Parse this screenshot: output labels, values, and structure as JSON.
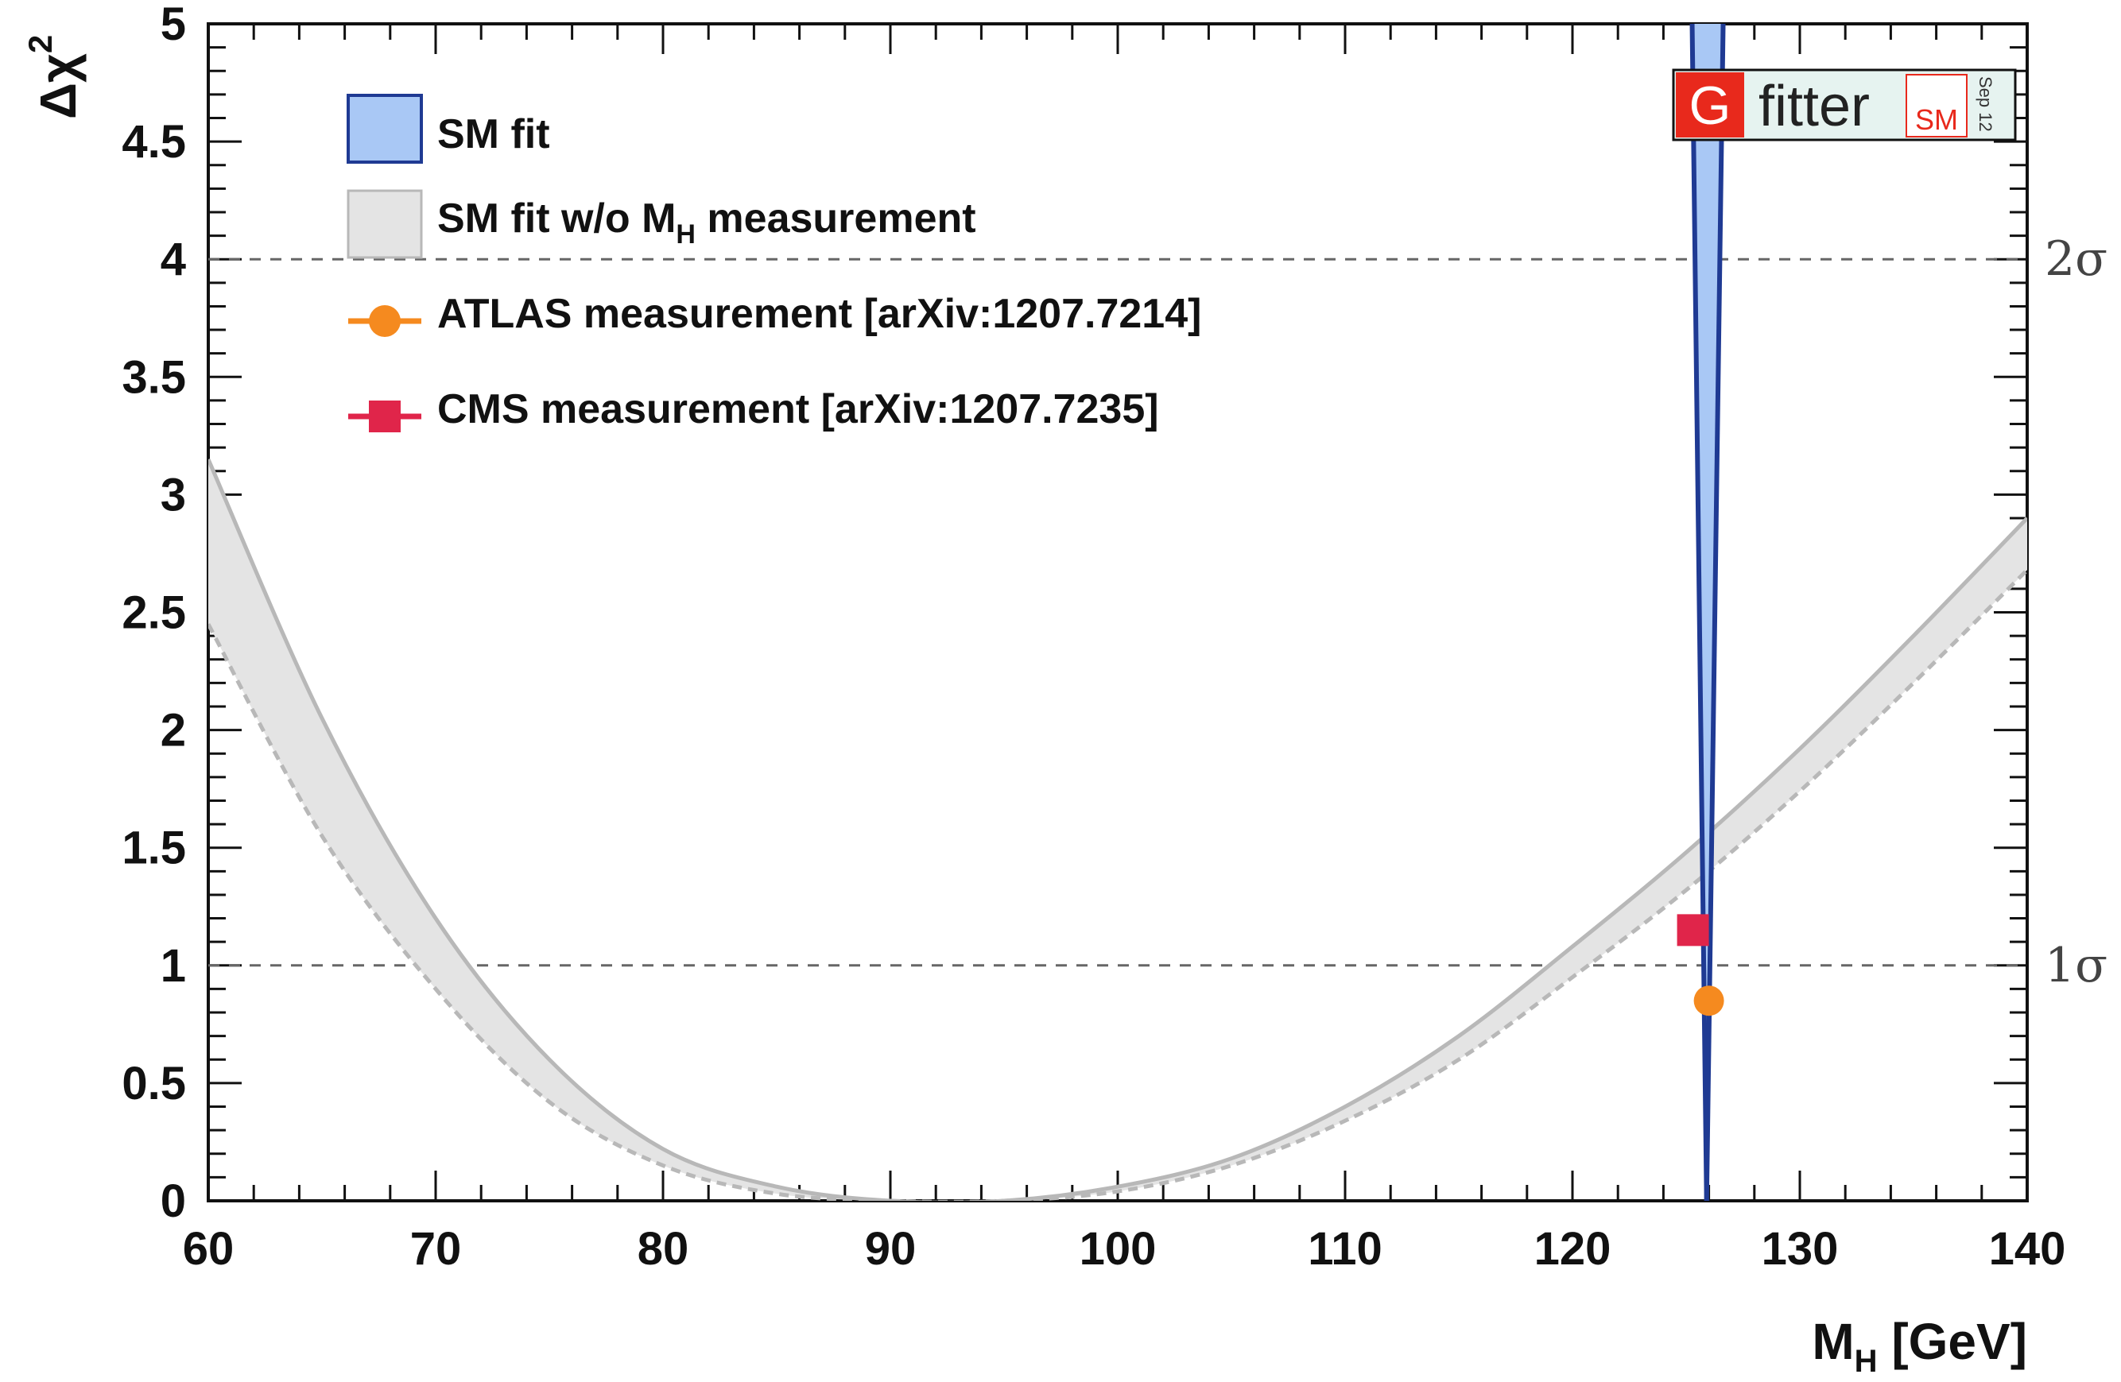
{
  "chart_data": {
    "type": "line",
    "xlabel": "M",
    "xlabel_sub": "H",
    "xlabel_unit": " [GeV]",
    "ylabel": "Δχ",
    "ylabel_sup": "2",
    "xlim": [
      60,
      140
    ],
    "ylim": [
      0,
      5
    ],
    "x_ticks": [
      60,
      70,
      80,
      90,
      100,
      110,
      120,
      130,
      140
    ],
    "y_ticks": [
      0,
      0.5,
      1,
      1.5,
      2,
      2.5,
      3,
      3.5,
      4,
      4.5,
      5
    ],
    "y_tick_labels": [
      "0",
      "0.5",
      "1",
      "1.5",
      "2",
      "2.5",
      "3",
      "3.5",
      "4",
      "4.5",
      "5"
    ],
    "grid": false,
    "legend_position": "top-left",
    "reference_lines": [
      {
        "y": 1,
        "label": "1σ"
      },
      {
        "y": 4,
        "label": "2σ"
      }
    ],
    "series": [
      {
        "name": "SM fit",
        "style": "band",
        "color": "#1f3a93",
        "fill": "#a9c8f5",
        "min_x": 125.9,
        "upper_edge": [
          [
            125.2,
            5.5
          ],
          [
            125.9,
            0
          ]
        ],
        "lower_edge": [
          [
            126.7,
            5.5
          ],
          [
            125.9,
            0
          ]
        ]
      },
      {
        "name": "SM fit w/o M_H measurement",
        "style": "band",
        "color": "#b8b8b8",
        "fill": "#e4e4e4",
        "upper_edge": [
          [
            60,
            3.15
          ],
          [
            65,
            2.05
          ],
          [
            70,
            1.2
          ],
          [
            75,
            0.6
          ],
          [
            80,
            0.22
          ],
          [
            85,
            0.06
          ],
          [
            90,
            0.0
          ],
          [
            95,
            0.0
          ],
          [
            100,
            0.06
          ],
          [
            105,
            0.18
          ],
          [
            110,
            0.4
          ],
          [
            115,
            0.7
          ],
          [
            120,
            1.08
          ],
          [
            125,
            1.48
          ],
          [
            130,
            1.92
          ],
          [
            135,
            2.4
          ],
          [
            140,
            2.9
          ]
        ],
        "lower_edge": [
          [
            60,
            2.45
          ],
          [
            65,
            1.55
          ],
          [
            70,
            0.9
          ],
          [
            75,
            0.42
          ],
          [
            80,
            0.15
          ],
          [
            85,
            0.03
          ],
          [
            90,
            0.0
          ],
          [
            95,
            0.0
          ],
          [
            100,
            0.04
          ],
          [
            105,
            0.15
          ],
          [
            110,
            0.34
          ],
          [
            115,
            0.6
          ],
          [
            120,
            0.95
          ],
          [
            125,
            1.32
          ],
          [
            130,
            1.74
          ],
          [
            135,
            2.2
          ],
          [
            140,
            2.68
          ]
        ]
      },
      {
        "name": "ATLAS measurement [arXiv:1207.7214]",
        "style": "point",
        "marker": "circle",
        "color": "#f58a1f",
        "points": [
          [
            126.0,
            0.85
          ]
        ]
      },
      {
        "name": "CMS measurement [arXiv:1207.7235]",
        "style": "point",
        "marker": "square",
        "color": "#e0254a",
        "points": [
          [
            125.3,
            1.15
          ]
        ]
      }
    ],
    "legend": [
      {
        "label": "SM fit",
        "subscript": "",
        "after": "",
        "swatch": "blue-box"
      },
      {
        "label": "SM fit w/o M",
        "subscript": "H",
        "after": " measurement",
        "swatch": "gray-box"
      },
      {
        "label": "ATLAS measurement [arXiv:1207.7214]",
        "subscript": "",
        "after": "",
        "swatch": "orange-circle"
      },
      {
        "label": "CMS measurement [arXiv:1207.7235]",
        "subscript": "",
        "after": "",
        "swatch": "red-square"
      }
    ]
  },
  "logo": {
    "letter": "G",
    "text": "fitter",
    "badge": "SM",
    "date": "Sep 12"
  },
  "colors": {
    "axis": "#111111",
    "reference_line": "#666666",
    "logo_red": "#e8291c",
    "logo_bg": "#e6f3f0"
  }
}
